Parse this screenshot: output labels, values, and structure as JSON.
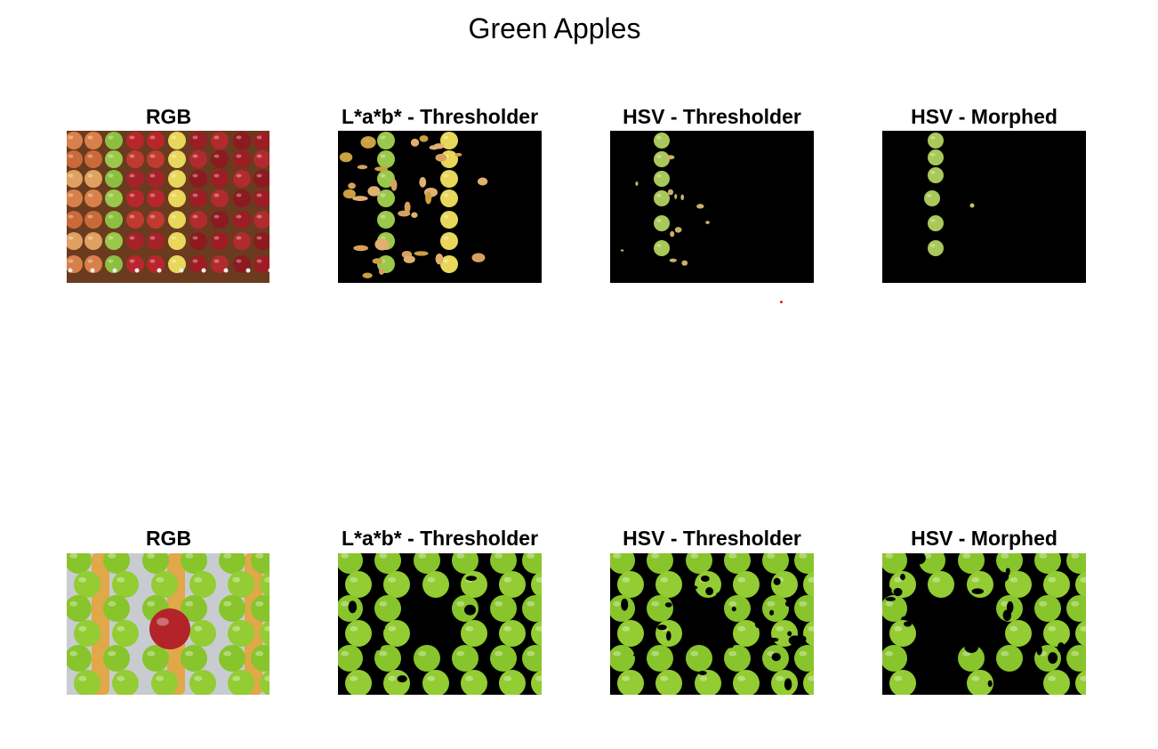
{
  "figure": {
    "title": "Green Apples",
    "rows": [
      {
        "panels": [
          {
            "title": "RGB",
            "kind": "rgb-red-apples"
          },
          {
            "title": "L*a*b* - Thresholder",
            "kind": "lab-red-apples"
          },
          {
            "title": "HSV - Thresholder",
            "kind": "hsv-red-apples"
          },
          {
            "title": "HSV - Morphed",
            "kind": "morph-red-apples"
          }
        ]
      },
      {
        "panels": [
          {
            "title": "RGB",
            "kind": "rgb-green-apples"
          },
          {
            "title": "L*a*b* - Thresholder",
            "kind": "lab-green-apples"
          },
          {
            "title": "HSV - Thresholder",
            "kind": "hsv-green-apples"
          },
          {
            "title": "HSV - Morphed",
            "kind": "morph-green-apples"
          }
        ]
      }
    ]
  },
  "colors": {
    "background": "#000000",
    "green_apple": "#8fc83a",
    "red_apple": "#b3232a",
    "yellow_apple": "#e6d25a",
    "wood": "#6a3b1f"
  }
}
